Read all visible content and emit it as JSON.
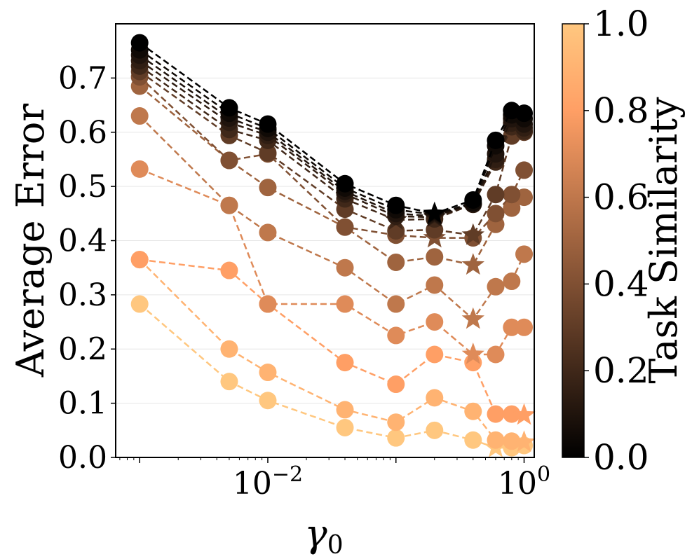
{
  "chart_data": {
    "type": "scatter",
    "title": "",
    "xlabel": "γ",
    "xlabel_subscript": "0",
    "ylabel": "Average Error",
    "xscale": "log",
    "xlim": [
      0.00065,
      1.2
    ],
    "ylim": [
      0.0,
      0.8
    ],
    "x_ticks": [
      {
        "value": 0.01,
        "base": "10",
        "exp": "−2"
      },
      {
        "value": 1.0,
        "base": "10",
        "exp": "0"
      }
    ],
    "y_ticks": [
      {
        "value": 0.0,
        "label": "0.0"
      },
      {
        "value": 0.1,
        "label": "0.1"
      },
      {
        "value": 0.2,
        "label": "0.2"
      },
      {
        "value": 0.3,
        "label": "0.3"
      },
      {
        "value": 0.4,
        "label": "0.4"
      },
      {
        "value": 0.5,
        "label": "0.5"
      },
      {
        "value": 0.6,
        "label": "0.6"
      },
      {
        "value": 0.7,
        "label": "0.7"
      }
    ],
    "grid": "horizontal",
    "line_style": "dashed",
    "marker": "circle",
    "min_marker": "star",
    "x": [
      0.001,
      0.005,
      0.01,
      0.04,
      0.1,
      0.2,
      0.4,
      0.6,
      0.8,
      1.0
    ],
    "series": [
      {
        "similarity": 0.0,
        "values": [
          0.765,
          0.645,
          0.615,
          0.505,
          0.465,
          0.45,
          0.475,
          0.585,
          0.64,
          0.635
        ]
      },
      {
        "similarity": 0.05,
        "values": [
          0.752,
          0.635,
          0.607,
          0.497,
          0.457,
          0.448,
          0.47,
          0.575,
          0.632,
          0.625
        ]
      },
      {
        "similarity": 0.1,
        "values": [
          0.742,
          0.626,
          0.6,
          0.491,
          0.45,
          0.445,
          0.468,
          0.56,
          0.625,
          0.615
        ]
      },
      {
        "similarity": 0.15,
        "values": [
          0.732,
          0.618,
          0.594,
          0.486,
          0.445,
          0.443,
          0.467,
          0.55,
          0.617,
          0.608
        ]
      },
      {
        "similarity": 0.2,
        "values": [
          0.722,
          0.605,
          0.585,
          0.477,
          0.438,
          0.44,
          0.467,
          0.545,
          0.61,
          0.602
        ]
      },
      {
        "similarity": 0.3,
        "values": [
          0.712,
          0.594,
          0.562,
          0.458,
          0.418,
          0.42,
          0.41,
          0.485,
          0.593,
          0.6
        ]
      },
      {
        "similarity": 0.4,
        "values": [
          0.702,
          0.548,
          0.56,
          0.425,
          0.41,
          0.405,
          0.405,
          0.45,
          0.485,
          0.53
        ]
      },
      {
        "similarity": 0.5,
        "values": [
          0.685,
          0.548,
          0.498,
          0.425,
          0.36,
          0.37,
          0.355,
          0.43,
          0.46,
          0.48
        ]
      },
      {
        "similarity": 0.6,
        "values": [
          0.63,
          0.465,
          0.415,
          0.35,
          0.283,
          0.318,
          0.255,
          0.315,
          0.325,
          0.375
        ]
      },
      {
        "similarity": 0.7,
        "values": [
          0.532,
          0.465,
          0.283,
          0.283,
          0.225,
          0.25,
          0.19,
          0.19,
          0.24,
          0.24
        ]
      },
      {
        "similarity": 0.8,
        "values": [
          0.365,
          0.345,
          0.283,
          0.175,
          0.135,
          0.19,
          0.175,
          0.08,
          0.08,
          0.078
        ]
      },
      {
        "similarity": 0.9,
        "values": [
          0.365,
          0.2,
          0.157,
          0.088,
          0.065,
          0.11,
          0.085,
          0.032,
          0.03,
          0.028
        ]
      },
      {
        "similarity": 1.0,
        "values": [
          0.283,
          0.14,
          0.105,
          0.055,
          0.036,
          0.05,
          0.032,
          0.018,
          0.018,
          0.022
        ]
      }
    ],
    "colorbar": {
      "label": "Task Similarity",
      "cmap": "copper",
      "min": 0.0,
      "max": 1.0,
      "ticks": [
        {
          "value": 0.0,
          "label": "0.0"
        },
        {
          "value": 0.2,
          "label": "0.2"
        },
        {
          "value": 0.4,
          "label": "0.4"
        },
        {
          "value": 0.6,
          "label": "0.6"
        },
        {
          "value": 0.8,
          "label": "0.8"
        },
        {
          "value": 1.0,
          "label": "1.0"
        }
      ],
      "color_low": "#000000",
      "color_high": "#ffc77f"
    }
  }
}
